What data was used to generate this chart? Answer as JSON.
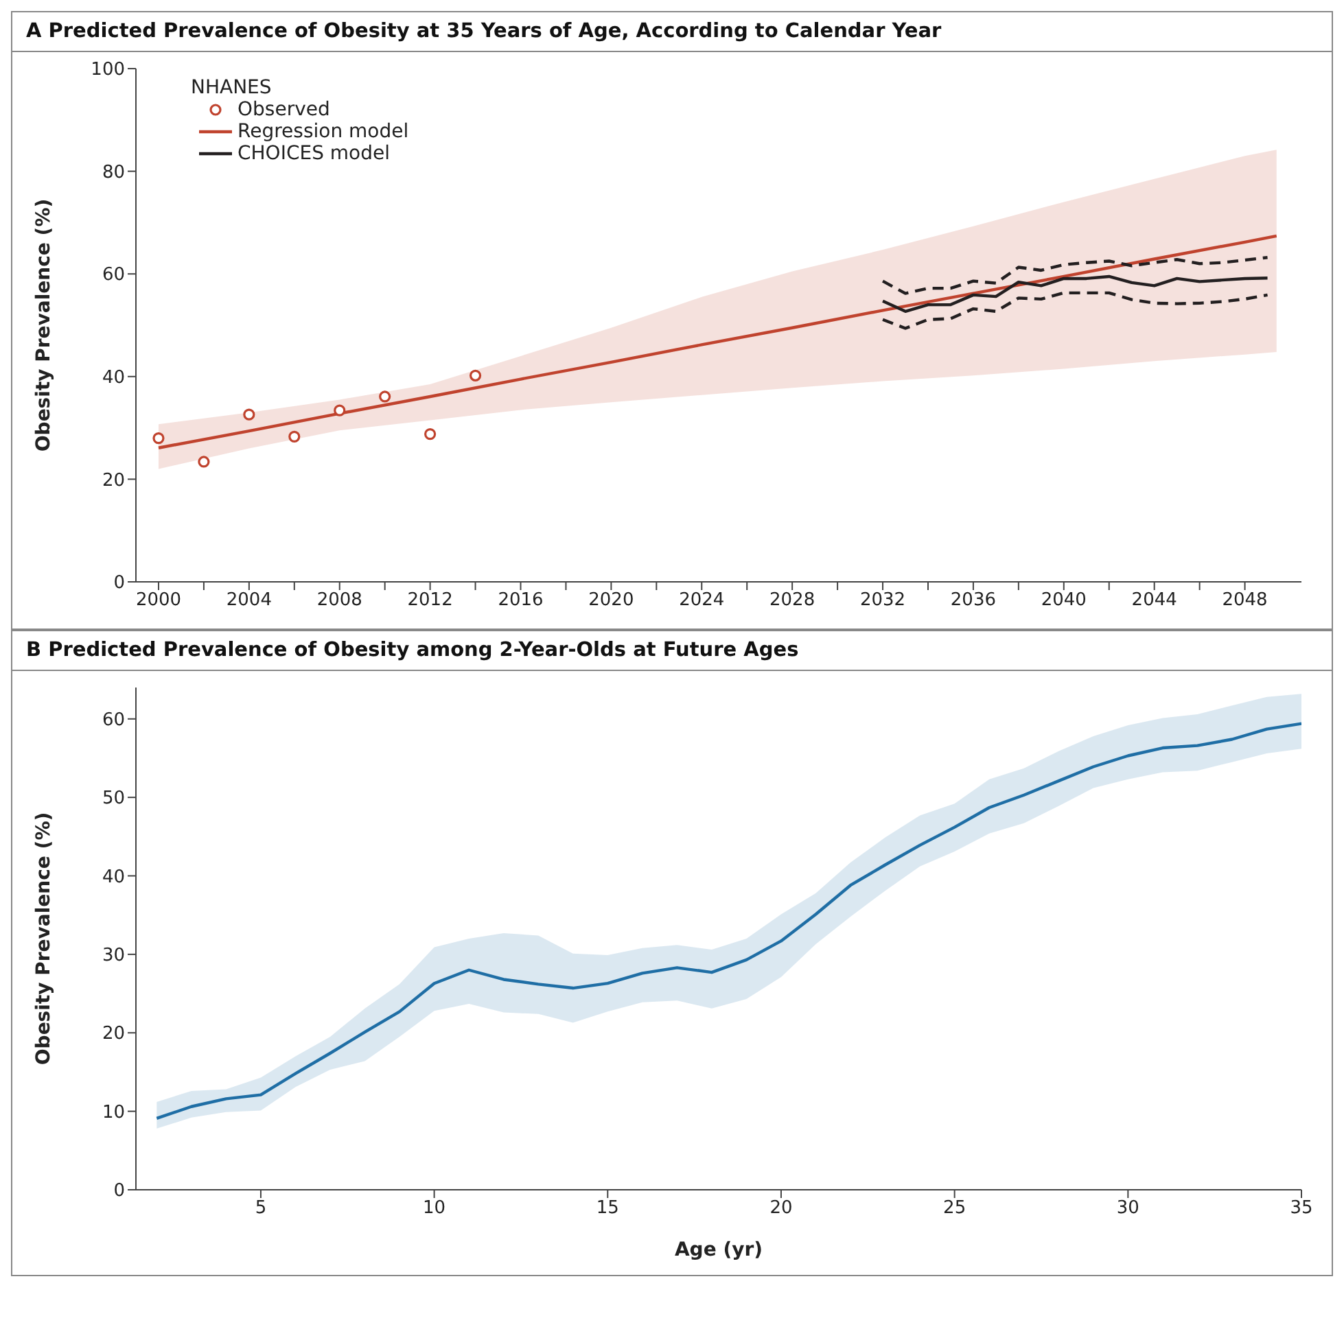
{
  "chart_data": [
    {
      "type": "line",
      "title": "A  Predicted Prevalence of Obesity at 35 Years of Age, According to Calendar Year",
      "ylabel": "Obesity Prevalence (%)",
      "xlim": [
        1999,
        2050.5
      ],
      "xticks": [
        2000,
        {
          "value": 2002,
          "label": null
        },
        2004,
        {
          "value": 2006,
          "label": null
        },
        2008,
        {
          "value": 2010,
          "label": null
        },
        2012,
        {
          "value": 2014,
          "label": null
        },
        2016,
        {
          "value": 2018,
          "label": null
        },
        2020,
        {
          "value": 2022,
          "label": null
        },
        2024,
        {
          "value": 2026,
          "label": null
        },
        2028,
        {
          "value": 2030,
          "label": null
        },
        2032,
        {
          "value": 2034,
          "label": null
        },
        2036,
        {
          "value": 2038,
          "label": null
        },
        2040,
        {
          "value": 2042,
          "label": null
        },
        2044,
        {
          "value": 2046,
          "label": null
        },
        2048
      ],
      "ylim": [
        0,
        100
      ],
      "yticks": [
        0,
        20,
        40,
        60,
        80,
        100
      ],
      "legend": "top left",
      "legend_title": "NHANES",
      "series": [
        {
          "name": "Observed",
          "type": "scatter",
          "marker": "circle",
          "color": "#c0432e",
          "x": [
            2000,
            2002,
            2004,
            2006,
            2008,
            2010,
            2012,
            2014
          ],
          "values": [
            28.0,
            23.4,
            32.6,
            28.3,
            33.4,
            36.1,
            28.8,
            40.2
          ]
        },
        {
          "name": "Regression model",
          "type": "line",
          "color": "#c0432e",
          "x": [
            2000,
            2004,
            2008,
            2012,
            2016,
            2020,
            2024,
            2028,
            2032,
            2036,
            2040,
            2044,
            2048,
            2049.4
          ],
          "values": [
            26.1,
            29.4,
            32.8,
            36.1,
            39.5,
            42.8,
            46.2,
            49.5,
            52.9,
            56.2,
            59.5,
            62.9,
            66.2,
            67.4
          ],
          "lower": [
            22,
            26,
            29.5,
            31.5,
            33.5,
            35,
            36.4,
            37.8,
            39.1,
            40.2,
            41.5,
            43,
            44.3,
            44.8
          ],
          "upper": [
            30.7,
            33,
            35.5,
            38.5,
            44,
            49.5,
            55.5,
            60.5,
            64.7,
            69.3,
            74,
            78.5,
            83,
            84.2
          ]
        },
        {
          "name": "CHOICES model",
          "type": "line",
          "color": "#231f20",
          "x": [
            2032,
            2033,
            2034,
            2035,
            2036,
            2037,
            2038,
            2039,
            2040,
            2041,
            2042,
            2043,
            2044,
            2045,
            2046,
            2047,
            2048,
            2049
          ],
          "values": [
            54.7,
            52.7,
            54.0,
            54.0,
            55.9,
            55.6,
            58.4,
            57.7,
            59.1,
            59.1,
            59.5,
            58.3,
            57.7,
            59.1,
            58.5,
            58.8,
            59.1,
            59.2
          ]
        },
        {
          "type": "line",
          "line_style": "dashed",
          "color": "#231f20",
          "x": [
            2032,
            2033,
            2034,
            2035,
            2036,
            2037,
            2038,
            2039,
            2040,
            2041,
            2042,
            2043,
            2044,
            2045,
            2046,
            2047,
            2048,
            2049
          ],
          "values": [
            58.6,
            56.2,
            57.2,
            57.2,
            58.6,
            58.2,
            61.3,
            60.7,
            61.8,
            62.2,
            62.5,
            61.6,
            62.2,
            62.8,
            62.0,
            62.2,
            62.7,
            63.2
          ]
        },
        {
          "type": "line",
          "line_style": "dashed",
          "color": "#231f20",
          "x": [
            2032,
            2033,
            2034,
            2035,
            2036,
            2037,
            2038,
            2039,
            2040,
            2041,
            2042,
            2043,
            2044,
            2045,
            2046,
            2047,
            2048,
            2049
          ],
          "values": [
            51.1,
            49.4,
            51.1,
            51.3,
            53.2,
            52.7,
            55.3,
            55.1,
            56.3,
            56.3,
            56.3,
            55.0,
            54.3,
            54.2,
            54.3,
            54.6,
            55.1,
            55.9
          ]
        }
      ]
    },
    {
      "type": "line",
      "title": "B  Predicted Prevalence of Obesity among 2-Year-Olds at Future Ages",
      "xlabel": "Age (yr)",
      "ylabel": "Obesity Prevalence (%)",
      "xlim": [
        1.4,
        35
      ],
      "xticks": [
        5,
        10,
        15,
        20,
        25,
        30,
        35
      ],
      "ylim": [
        0,
        64
      ],
      "yticks": [
        0,
        10,
        20,
        30,
        40,
        50,
        60
      ],
      "series": [
        {
          "type": "line",
          "color": "#1f6ea5",
          "x": [
            2,
            3,
            4,
            5,
            6,
            7,
            8,
            9,
            10,
            11,
            12,
            13,
            14,
            15,
            16,
            17,
            18,
            19,
            20,
            21,
            22,
            23,
            24,
            25,
            26,
            27,
            28,
            29,
            30,
            31,
            32,
            33,
            34,
            35
          ],
          "values": [
            9.1,
            10.6,
            11.6,
            12.1,
            14.8,
            17.4,
            20.1,
            22.7,
            26.3,
            28.0,
            26.8,
            26.2,
            25.7,
            26.3,
            27.6,
            28.3,
            27.7,
            29.3,
            31.7,
            35.1,
            38.8,
            41.4,
            43.9,
            46.2,
            48.7,
            50.3,
            52.1,
            53.9,
            55.3,
            56.3,
            56.6,
            57.4,
            58.7,
            59.4
          ],
          "lower": [
            7.8,
            9.2,
            9.9,
            10.1,
            13.1,
            15.3,
            16.4,
            19.5,
            22.8,
            23.7,
            22.6,
            22.4,
            21.3,
            22.7,
            23.9,
            24.1,
            23.1,
            24.3,
            27.1,
            31.3,
            34.8,
            38.1,
            41.2,
            43.1,
            45.4,
            46.7,
            48.9,
            51.2,
            52.3,
            53.2,
            53.4,
            54.5,
            55.6,
            56.2
          ],
          "upper": [
            11.2,
            12.6,
            12.8,
            14.3,
            17.0,
            19.5,
            23.1,
            26.2,
            30.9,
            32.0,
            32.7,
            32.4,
            30.1,
            29.9,
            30.8,
            31.2,
            30.6,
            32.0,
            35.1,
            37.8,
            41.7,
            44.9,
            47.7,
            49.2,
            52.3,
            53.7,
            55.9,
            57.8,
            59.2,
            60.1,
            60.6,
            61.7,
            62.8,
            63.2
          ]
        }
      ]
    }
  ]
}
